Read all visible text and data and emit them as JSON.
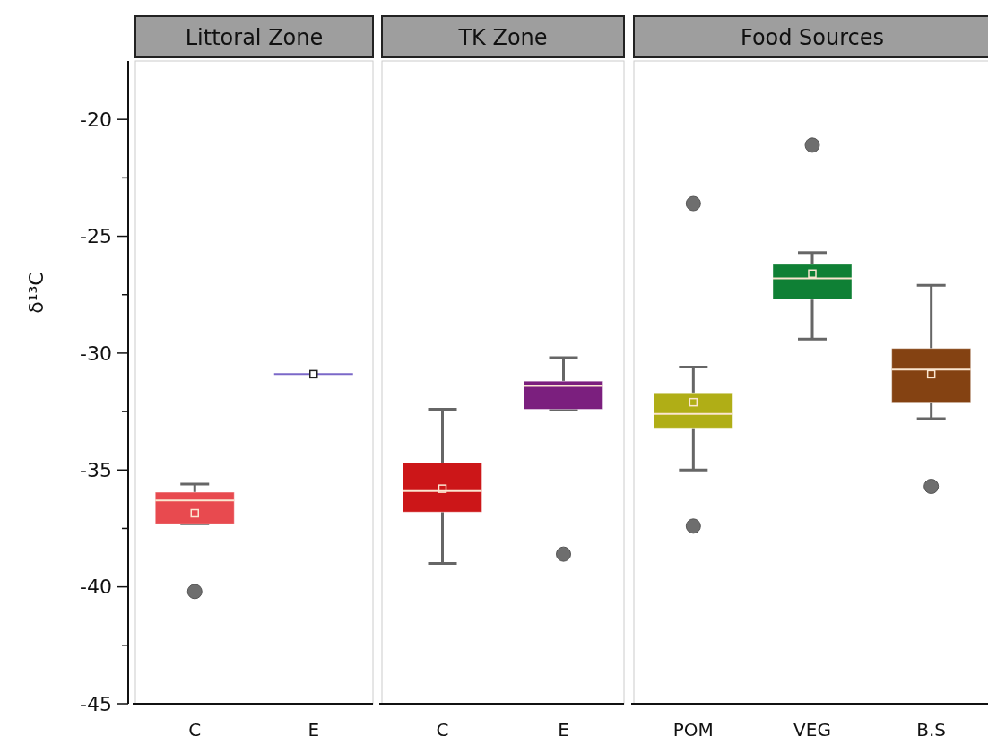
{
  "chart_data": [
    {
      "type": "box",
      "title": "Littoral Zone",
      "ylabel": "δ¹³C",
      "categories": [
        "C",
        "E"
      ],
      "colors": [
        "#e84a4f",
        "#7b68c8"
      ],
      "ylim": [
        -45,
        -17.5
      ],
      "yticks": [
        -45,
        {
          "value": -42.5,
          "label": null
        },
        -40,
        {
          "value": -37.5,
          "label": null
        },
        -35,
        {
          "value": -32.5,
          "label": null
        },
        -30,
        {
          "value": -27.5,
          "label": null
        },
        -25,
        {
          "value": -22.5,
          "label": null
        },
        -20
      ],
      "boxes": [
        {
          "low": -37.3,
          "q1": -37.3,
          "median": -36.3,
          "q3": -35.95,
          "high": -35.6,
          "mean": -36.85,
          "outliers": [
            -40.2
          ]
        },
        {
          "low": -30.9,
          "q1": -30.9,
          "median": -30.9,
          "q3": -30.9,
          "high": -30.9,
          "mean": -30.9
        }
      ]
    },
    {
      "type": "box",
      "title": "TK Zone",
      "categories": [
        "C",
        "E"
      ],
      "colors": [
        "#cc1618",
        "#7b1f7e"
      ],
      "ylim": [
        -45,
        -17.5
      ],
      "tick_labels": "x",
      "boxes": [
        {
          "low": -39.0,
          "q1": -36.8,
          "median": -35.9,
          "q3": -34.7,
          "high": -32.4,
          "mean": -35.8
        },
        {
          "low": -32.4,
          "q1": -32.4,
          "median": -31.4,
          "q3": -31.2,
          "high": -30.2,
          "outliers": [
            -38.6
          ]
        }
      ]
    },
    {
      "type": "box",
      "title": "Food Sources",
      "categories": [
        "POM",
        "VEG",
        "B.S"
      ],
      "colors": [
        "#b0ae16",
        "#0f8035",
        "#844212"
      ],
      "ylim": [
        -45,
        -17.5
      ],
      "tick_labels": "x",
      "boxes": [
        {
          "low": -35.0,
          "q1": -33.2,
          "median": -32.6,
          "q3": -31.7,
          "high": -30.6,
          "mean": -32.1,
          "outliers": [
            -23.6,
            -37.4
          ]
        },
        {
          "low": -29.4,
          "q1": -27.7,
          "median": -26.8,
          "q3": -26.2,
          "high": -25.7,
          "mean": -26.6,
          "outliers": [
            -21.1
          ]
        },
        {
          "low": -32.8,
          "q1": -32.1,
          "median": -30.7,
          "q3": -29.8,
          "high": -27.1,
          "mean": -30.9,
          "outliers": [
            -35.7
          ]
        }
      ]
    }
  ]
}
